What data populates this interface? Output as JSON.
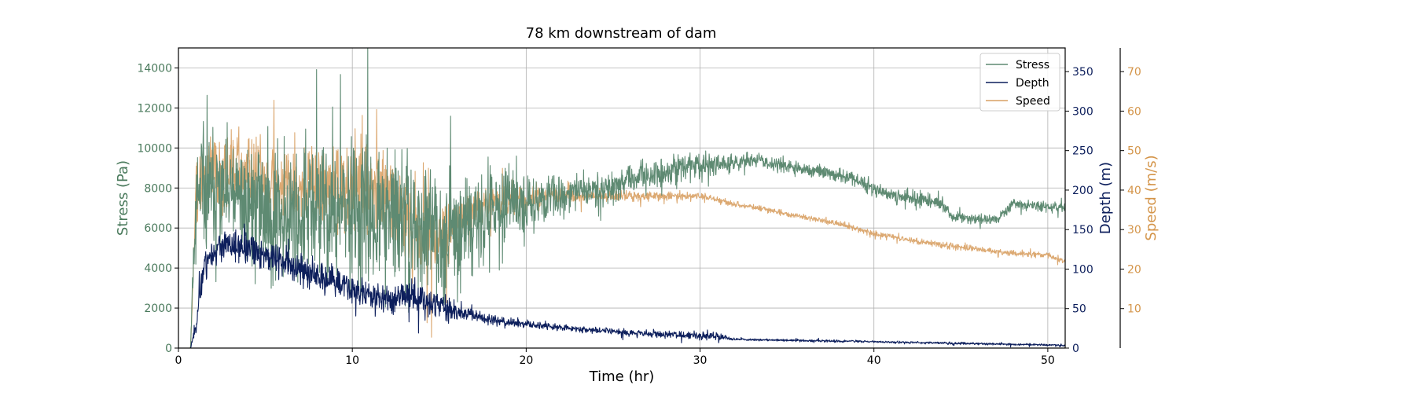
{
  "chart_data": {
    "type": "line",
    "title": "78 km downstream of dam",
    "xlabel": "Time (hr)",
    "xlim": [
      0,
      51
    ],
    "xticks": [
      0,
      10,
      20,
      30,
      40,
      50
    ],
    "grid": true,
    "legend_position": "top-right",
    "axes": {
      "left": {
        "label": "Stress (Pa)",
        "color": "#4a7a5c",
        "ylim": [
          0,
          15000
        ],
        "ticks": [
          0,
          2000,
          4000,
          6000,
          8000,
          10000,
          12000,
          14000
        ]
      },
      "right1": {
        "label": "Depth (m)",
        "color": "#0d1f5c",
        "ylim": [
          0,
          380
        ],
        "ticks": [
          0,
          50,
          100,
          150,
          200,
          250,
          300,
          350
        ]
      },
      "right2": {
        "label": "Speed (m/s)",
        "color": "#d4954a",
        "ylim": [
          0,
          76
        ],
        "ticks": [
          10,
          20,
          30,
          40,
          50,
          60,
          70
        ]
      }
    },
    "series": [
      {
        "name": "Stress",
        "axis": "left",
        "color": "#5e8a72",
        "noisy": true,
        "x": [
          0,
          0.7,
          0.9,
          1.2,
          2,
          4,
          6,
          8,
          10,
          12,
          14,
          16,
          18,
          20,
          22,
          25,
          27,
          29,
          31,
          33,
          35,
          37,
          39,
          40,
          42,
          44,
          44.5,
          47,
          48,
          51
        ],
        "y": [
          0,
          0,
          6000,
          7500,
          7800,
          7200,
          6600,
          6900,
          6600,
          6600,
          5800,
          5800,
          6900,
          7300,
          7700,
          8100,
          8600,
          9000,
          9200,
          9400,
          9100,
          8800,
          8400,
          7900,
          7500,
          7200,
          6500,
          6400,
          7200,
          7000
        ],
        "amp": [
          0,
          0,
          1500,
          2300,
          2000,
          2300,
          2300,
          2500,
          2700,
          2700,
          2300,
          2000,
          1500,
          1000,
          700,
          550,
          550,
          550,
          450,
          250,
          250,
          250,
          250,
          250,
          300,
          250,
          200,
          200,
          180,
          180
        ]
      },
      {
        "name": "Depth",
        "axis": "right1",
        "color": "#0d1f5c",
        "noisy": true,
        "x": [
          0,
          0.7,
          1,
          1.5,
          2.5,
          4,
          6,
          8,
          10,
          12,
          13,
          15,
          16,
          18,
          20,
          22,
          25,
          28,
          30,
          31,
          32,
          35,
          40,
          45,
          50,
          51
        ],
        "y": [
          0,
          0,
          30,
          110,
          130,
          125,
          110,
          90,
          75,
          60,
          70,
          55,
          45,
          36,
          30,
          26,
          21,
          17,
          16,
          15,
          11,
          10,
          8,
          6,
          4,
          3
        ],
        "amp": [
          0,
          0,
          8,
          14,
          14,
          14,
          14,
          14,
          14,
          12,
          16,
          14,
          8,
          5,
          4,
          3,
          3,
          3,
          4,
          4,
          1,
          1,
          1,
          1,
          1,
          1
        ]
      },
      {
        "name": "Speed",
        "axis": "right2",
        "color": "#d8a063",
        "noisy": true,
        "x": [
          0,
          0.7,
          1,
          2,
          4,
          6,
          8,
          10,
          12,
          13,
          14,
          15,
          16,
          18,
          20,
          22,
          25,
          28,
          30,
          32,
          35,
          38,
          40,
          42,
          44,
          46,
          48,
          50,
          51
        ],
        "y": [
          0,
          0,
          38,
          45,
          44,
          42,
          41,
          41,
          40,
          33,
          29,
          27,
          33,
          37,
          38,
          38.5,
          38.5,
          38.5,
          38.5,
          36.5,
          34,
          31.5,
          29,
          27.5,
          26,
          25,
          24,
          23.5,
          22
        ],
        "amp": [
          0,
          0,
          6,
          7,
          7,
          7,
          7,
          8,
          8,
          8,
          8,
          6,
          4,
          3,
          2.5,
          1.5,
          1,
          0.8,
          0.8,
          0.5,
          0.5,
          0.5,
          0.5,
          0.5,
          0.6,
          0.5,
          0.5,
          0.5,
          0.5
        ]
      }
    ]
  }
}
